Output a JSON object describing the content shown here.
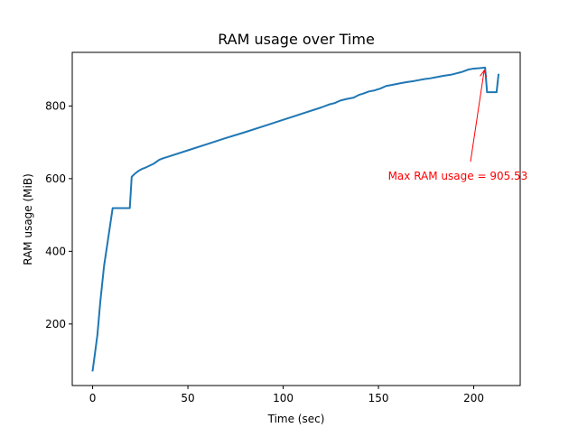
{
  "chart_data": {
    "type": "line",
    "title": "RAM usage over Time",
    "xlabel": "Time (sec)",
    "ylabel": "RAM usage (MiB)",
    "xlim": [
      -10.7,
      224.4
    ],
    "ylim": [
      30.6,
      947.6
    ],
    "xticks": [
      0,
      50,
      100,
      150,
      200
    ],
    "yticks": [
      200,
      400,
      600,
      800
    ],
    "xtick_labels": [
      "0",
      "50",
      "100",
      "150",
      "200"
    ],
    "ytick_labels": [
      "200",
      "400",
      "600",
      "800"
    ],
    "grid": false,
    "series": [
      {
        "color": "#1f77b4",
        "x": [
          0,
          1,
          2.5,
          4,
          6,
          8,
          10.5,
          12,
          15,
          18,
          19.5,
          20.5,
          22,
          24,
          26,
          28,
          30,
          32,
          35,
          37,
          40,
          50,
          60,
          70,
          80,
          90,
          100,
          110,
          120,
          124,
          127,
          130,
          133,
          137,
          140,
          142,
          145,
          148,
          151,
          154,
          156,
          159,
          162,
          165,
          168,
          171,
          174,
          177,
          180,
          184,
          188,
          191,
          194,
          197,
          200,
          203,
          206,
          207,
          209,
          212,
          213
        ],
        "y": [
          72,
          110,
          170,
          260,
          360,
          430,
          519,
          519,
          519,
          519,
          519,
          605,
          613,
          621,
          627,
          631,
          636,
          641,
          652,
          656,
          661,
          678,
          695,
          712,
          728,
          745,
          762,
          779,
          796,
          804,
          808,
          815,
          819,
          823,
          831,
          834,
          840,
          843,
          848,
          855,
          857,
          860,
          863,
          866,
          868,
          871,
          874,
          876,
          879,
          883,
          886,
          890,
          894,
          900,
          903,
          904,
          905.53,
          838,
          838,
          838,
          886
        ]
      }
    ],
    "annotation": {
      "text": "Max RAM usage = 905.53",
      "color": "#ff0000",
      "point": [
        205.5,
        905.53
      ],
      "text_at": [
        155,
        610
      ]
    }
  }
}
